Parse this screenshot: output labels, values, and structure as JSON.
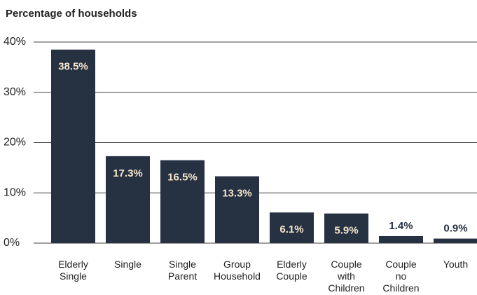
{
  "chart_data": {
    "type": "bar",
    "title": "Percentage of households",
    "categories": [
      "Elderly\nSingle",
      "Single",
      "Single\nParent",
      "Group\nHousehold",
      "Elderly\nCouple",
      "Couple\nwith\nChildren",
      "Couple\nno\nChildren",
      "Youth"
    ],
    "values": [
      38.5,
      17.3,
      16.5,
      13.3,
      6.1,
      5.9,
      1.4,
      0.9
    ],
    "value_labels": [
      "38.5%",
      "17.3%",
      "16.5%",
      "13.3%",
      "6.1%",
      "5.9%",
      "1.4%",
      "0.9%"
    ],
    "color": "#263142",
    "ylim": [
      0,
      40
    ],
    "yticks": [
      {
        "value": 0,
        "label": "0%"
      },
      {
        "value": 10,
        "label": "10%"
      },
      {
        "value": 20,
        "label": "20%"
      },
      {
        "value": 30,
        "label": "30%"
      },
      {
        "value": 40,
        "label": "40%"
      }
    ],
    "grid": true
  }
}
